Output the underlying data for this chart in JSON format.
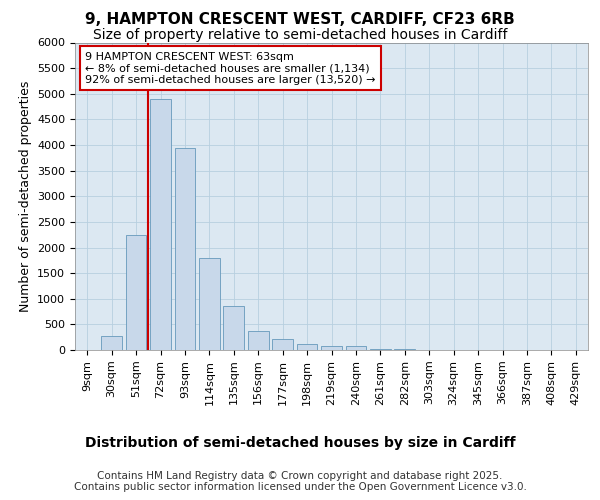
{
  "title_line1": "9, HAMPTON CRESCENT WEST, CARDIFF, CF23 6RB",
  "title_line2": "Size of property relative to semi-detached houses in Cardiff",
  "xlabel": "Distribution of semi-detached houses by size in Cardiff",
  "ylabel": "Number of semi-detached properties",
  "categories": [
    "9sqm",
    "30sqm",
    "51sqm",
    "72sqm",
    "93sqm",
    "114sqm",
    "135sqm",
    "156sqm",
    "177sqm",
    "198sqm",
    "219sqm",
    "240sqm",
    "261sqm",
    "282sqm",
    "303sqm",
    "324sqm",
    "345sqm",
    "366sqm",
    "387sqm",
    "408sqm",
    "429sqm"
  ],
  "values": [
    5,
    280,
    2250,
    4900,
    3950,
    1800,
    850,
    380,
    220,
    120,
    80,
    80,
    20,
    10,
    5,
    3,
    2,
    1,
    1,
    1,
    0
  ],
  "bar_color": "#c8d8ea",
  "bar_edgecolor": "#6699bb",
  "vline_color": "#cc0000",
  "vline_pos": 2.5,
  "annotation_text": "9 HAMPTON CRESCENT WEST: 63sqm\n← 8% of semi-detached houses are smaller (1,134)\n92% of semi-detached houses are larger (13,520) →",
  "annotation_box_edgecolor": "#cc0000",
  "annotation_box_facecolor": "#ffffff",
  "ylim": [
    0,
    6000
  ],
  "yticks": [
    0,
    500,
    1000,
    1500,
    2000,
    2500,
    3000,
    3500,
    4000,
    4500,
    5000,
    5500,
    6000
  ],
  "grid_color": "#b8cfe0",
  "plot_bg_color": "#dce8f2",
  "footer_text": "Contains HM Land Registry data © Crown copyright and database right 2025.\nContains public sector information licensed under the Open Government Licence v3.0.",
  "title_fontsize": 11,
  "subtitle_fontsize": 10,
  "xlabel_fontsize": 10,
  "ylabel_fontsize": 9,
  "tick_fontsize": 8,
  "footer_fontsize": 7.5,
  "annot_fontsize": 8
}
